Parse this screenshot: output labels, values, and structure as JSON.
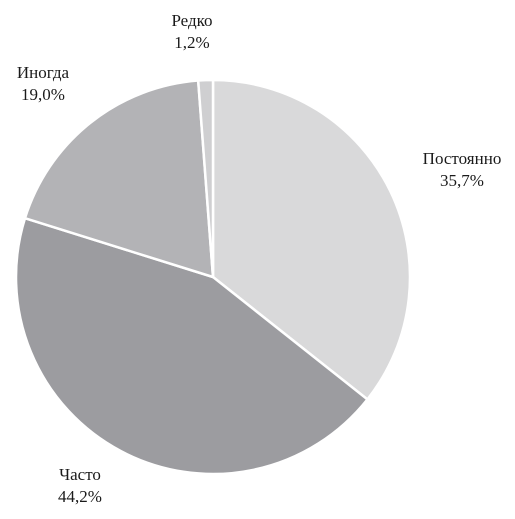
{
  "chart_data": {
    "type": "pie",
    "title": "",
    "slices": [
      {
        "label": "Постоянно",
        "value": 35.7,
        "value_label": "35,7%",
        "color": "#d9d9da"
      },
      {
        "label": "Часто",
        "value": 44.2,
        "value_label": "44,2%",
        "color": "#9c9ca0"
      },
      {
        "label": "Иногда",
        "value": 19.0,
        "value_label": "19,0%",
        "color": "#b3b3b6"
      },
      {
        "label": "Редко",
        "value": 1.2,
        "value_label": "1,2%",
        "color": "#cfcfd1"
      }
    ],
    "start_angle": "12 o'clock",
    "direction": "clockwise",
    "separator_color": "#ffffff",
    "legend": "none"
  }
}
